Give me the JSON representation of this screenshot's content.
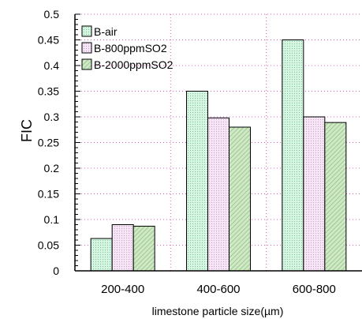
{
  "chart_data": {
    "type": "bar",
    "title": "",
    "xlabel": "limestone particle size(µm)",
    "ylabel": "FIC",
    "categories": [
      "200-400",
      "400-600",
      "600-800"
    ],
    "ylim": [
      0,
      0.5
    ],
    "yticks": [
      "0",
      "0.05",
      "0.1",
      "0.15",
      "0.2",
      "0.25",
      "0.3",
      "0.35",
      "0.4",
      "0.45",
      "0.5"
    ],
    "grid": "dotted, both axes",
    "legend_position": "top-left",
    "series": [
      {
        "name": "B-air",
        "values": [
          0.063,
          0.35,
          0.45
        ],
        "color": "#ccf2dc",
        "hatch": "dots"
      },
      {
        "name": "B-800ppmSO2",
        "values": [
          0.09,
          0.298,
          0.3
        ],
        "color": "#f2dcf2",
        "hatch": "dots"
      },
      {
        "name": "B-2000ppmSO2",
        "values": [
          0.087,
          0.28,
          0.289
        ],
        "color": "#c2e0b8",
        "hatch": "diagonal"
      }
    ]
  }
}
